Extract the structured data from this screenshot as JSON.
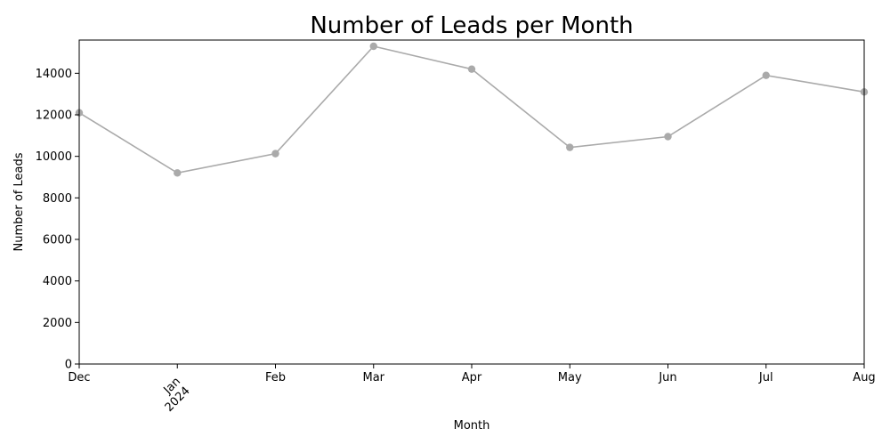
{
  "chart_data": {
    "type": "line",
    "title": "Number of Leads per Month",
    "xlabel": "Month",
    "ylabel": "Number of Leads",
    "x": [
      "2023-12",
      "2024-01",
      "2024-02",
      "2024-03",
      "2024-04",
      "2024-05",
      "2024-06",
      "2024-07",
      "2024-08"
    ],
    "x_tick_labels": [
      "Dec",
      "Jan\n2024",
      "Feb",
      "Mar",
      "Apr",
      "May",
      "Jun",
      "Jul",
      "Aug"
    ],
    "series": [
      {
        "values": [
          12100,
          9200,
          10130,
          15300,
          14200,
          10430,
          10950,
          13900,
          13100
        ],
        "color": "#aaaaaa"
      }
    ],
    "ylim": [
      0,
      15600
    ],
    "y_ticks": [
      0,
      2000,
      4000,
      6000,
      8000,
      10000,
      12000,
      14000
    ],
    "grid": false,
    "legend": "none"
  }
}
